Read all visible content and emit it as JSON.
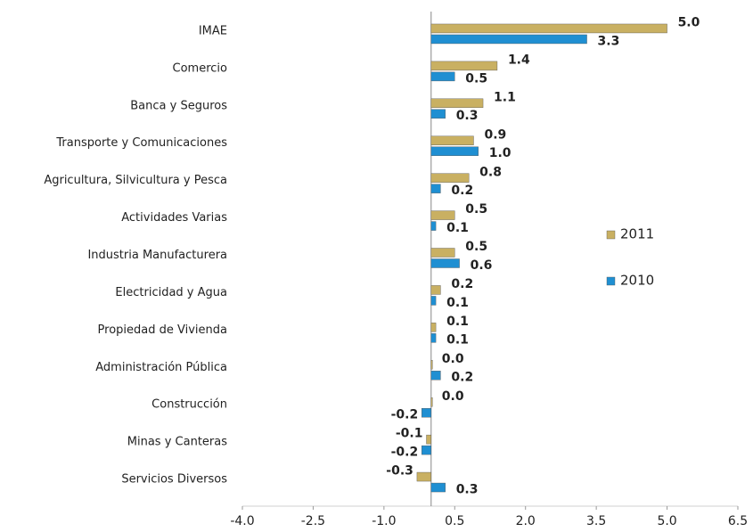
{
  "chart_data": {
    "type": "bar",
    "orientation": "horizontal",
    "categories": [
      "IMAE",
      "Comercio",
      "Banca y Seguros",
      "Transporte y Comunicaciones",
      "Agricultura, Silvicultura y Pesca",
      "Actividades Varias",
      "Industria Manufacturera",
      "Electricidad y Agua",
      "Propiedad de Vivienda",
      "Administración Pública",
      "Construcción",
      "Minas y Canteras",
      "Servicios Diversos"
    ],
    "series": [
      {
        "name": "2011",
        "color": "#c9b062",
        "label_color": "#4b4a1c",
        "values": [
          5.0,
          1.4,
          1.1,
          0.9,
          0.8,
          0.5,
          0.5,
          0.2,
          0.1,
          0.0,
          0.0,
          -0.1,
          -0.3
        ],
        "value_labels": [
          "5.0",
          "1.4",
          "1.1",
          "0.9",
          "0.8",
          "0.5",
          "0.5",
          "0.2",
          "0.1",
          "0.0",
          "0.0",
          "-0.1",
          "-0.3"
        ]
      },
      {
        "name": "2010",
        "color": "#1f8fd2",
        "label_color": "#3a9a66",
        "values": [
          3.3,
          0.5,
          0.3,
          1.0,
          0.2,
          0.1,
          0.6,
          0.1,
          0.1,
          0.2,
          -0.2,
          -0.2,
          0.3
        ],
        "value_labels": [
          "3.3",
          "0.5",
          "0.3",
          "1.0",
          "0.2",
          "0.1",
          "0.6",
          "0.1",
          "0.1",
          "0.2",
          "-0.2",
          "-0.2",
          "0.3"
        ]
      }
    ],
    "xlim": [
      -4,
      6.5
    ],
    "xticks": [
      {
        "value": -4,
        "label": "-4.0"
      },
      -2.5,
      {
        "value": -1,
        "label": "-1.0"
      },
      0.5,
      {
        "value": 2,
        "label": "2.0"
      },
      3.5,
      {
        "value": 5,
        "label": "5.0"
      },
      6.5
    ]
  }
}
